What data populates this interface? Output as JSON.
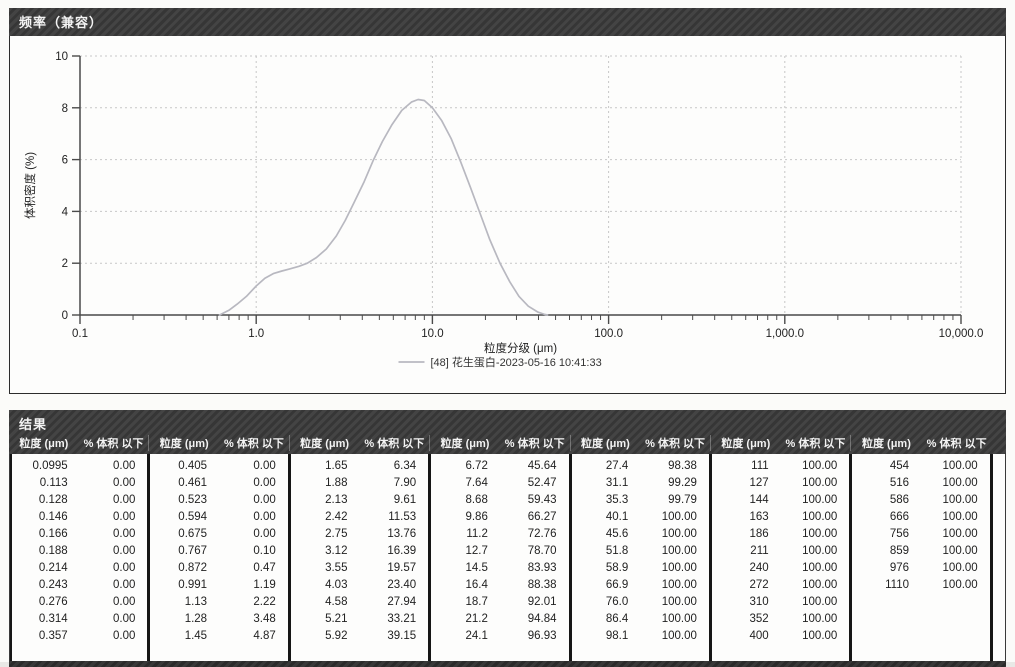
{
  "chart_panel": {
    "title": "频率（兼容）",
    "ylabel": "体积密度 (%)",
    "xlabel": "粒度分级 (μm)",
    "legend": "[48] 花生蛋白-2023-05-16 10:41:33",
    "y_ticks": [
      0,
      2,
      4,
      6,
      8,
      10
    ],
    "x_tick_values": [
      0.1,
      1,
      10,
      100,
      1000,
      10000
    ],
    "x_tick_labels": [
      "0.1",
      "1.0",
      "10.0",
      "100.0",
      "1,000.0",
      "10,000.0"
    ]
  },
  "chart_data": {
    "type": "line",
    "title": "频率（兼容）",
    "xlabel": "粒度分级 (μm)",
    "ylabel": "体积密度 (%)",
    "x_scale": "log",
    "xlim": [
      0.1,
      10000
    ],
    "ylim": [
      0,
      10
    ],
    "grid": true,
    "legend_position": "bottom",
    "series": [
      {
        "name": "[48] 花生蛋白-2023-05-16 10:41:33",
        "color": "#b8b8c0",
        "points": [
          [
            0.62,
            0
          ],
          [
            0.7,
            0.18
          ],
          [
            0.78,
            0.42
          ],
          [
            0.88,
            0.72
          ],
          [
            1.0,
            1.12
          ],
          [
            1.12,
            1.42
          ],
          [
            1.25,
            1.6
          ],
          [
            1.4,
            1.7
          ],
          [
            1.55,
            1.78
          ],
          [
            1.75,
            1.88
          ],
          [
            1.95,
            2.0
          ],
          [
            2.2,
            2.22
          ],
          [
            2.5,
            2.55
          ],
          [
            2.85,
            3.05
          ],
          [
            3.2,
            3.65
          ],
          [
            3.6,
            4.35
          ],
          [
            4.1,
            5.15
          ],
          [
            4.6,
            5.95
          ],
          [
            5.2,
            6.7
          ],
          [
            5.9,
            7.35
          ],
          [
            6.7,
            7.9
          ],
          [
            7.6,
            8.22
          ],
          [
            8.3,
            8.32
          ],
          [
            9.0,
            8.28
          ],
          [
            10.0,
            8.0
          ],
          [
            11.3,
            7.5
          ],
          [
            12.8,
            6.8
          ],
          [
            14.5,
            5.9
          ],
          [
            16.5,
            4.9
          ],
          [
            18.7,
            3.9
          ],
          [
            21.2,
            2.9
          ],
          [
            24.2,
            2.0
          ],
          [
            27.5,
            1.28
          ],
          [
            31,
            0.72
          ],
          [
            35,
            0.34
          ],
          [
            39.5,
            0.12
          ],
          [
            43.5,
            0.02
          ],
          [
            45,
            0
          ]
        ]
      }
    ]
  },
  "results_panel": {
    "title": "结果",
    "col_headers": [
      "粒度 (μm)",
      "% 体积 以下"
    ],
    "tables": [
      {
        "rows": [
          [
            "0.0995",
            "0.00"
          ],
          [
            "0.113",
            "0.00"
          ],
          [
            "0.128",
            "0.00"
          ],
          [
            "0.146",
            "0.00"
          ],
          [
            "0.166",
            "0.00"
          ],
          [
            "0.188",
            "0.00"
          ],
          [
            "0.214",
            "0.00"
          ],
          [
            "0.243",
            "0.00"
          ],
          [
            "0.276",
            "0.00"
          ],
          [
            "0.314",
            "0.00"
          ],
          [
            "0.357",
            "0.00"
          ]
        ]
      },
      {
        "rows": [
          [
            "0.405",
            "0.00"
          ],
          [
            "0.461",
            "0.00"
          ],
          [
            "0.523",
            "0.00"
          ],
          [
            "0.594",
            "0.00"
          ],
          [
            "0.675",
            "0.00"
          ],
          [
            "0.767",
            "0.10"
          ],
          [
            "0.872",
            "0.47"
          ],
          [
            "0.991",
            "1.19"
          ],
          [
            "1.13",
            "2.22"
          ],
          [
            "1.28",
            "3.48"
          ],
          [
            "1.45",
            "4.87"
          ]
        ]
      },
      {
        "rows": [
          [
            "1.65",
            "6.34"
          ],
          [
            "1.88",
            "7.90"
          ],
          [
            "2.13",
            "9.61"
          ],
          [
            "2.42",
            "11.53"
          ],
          [
            "2.75",
            "13.76"
          ],
          [
            "3.12",
            "16.39"
          ],
          [
            "3.55",
            "19.57"
          ],
          [
            "4.03",
            "23.40"
          ],
          [
            "4.58",
            "27.94"
          ],
          [
            "5.21",
            "33.21"
          ],
          [
            "5.92",
            "39.15"
          ]
        ]
      },
      {
        "rows": [
          [
            "6.72",
            "45.64"
          ],
          [
            "7.64",
            "52.47"
          ],
          [
            "8.68",
            "59.43"
          ],
          [
            "9.86",
            "66.27"
          ],
          [
            "11.2",
            "72.76"
          ],
          [
            "12.7",
            "78.70"
          ],
          [
            "14.5",
            "83.93"
          ],
          [
            "16.4",
            "88.38"
          ],
          [
            "18.7",
            "92.01"
          ],
          [
            "21.2",
            "94.84"
          ],
          [
            "24.1",
            "96.93"
          ]
        ]
      },
      {
        "rows": [
          [
            "27.4",
            "98.38"
          ],
          [
            "31.1",
            "99.29"
          ],
          [
            "35.3",
            "99.79"
          ],
          [
            "40.1",
            "100.00"
          ],
          [
            "45.6",
            "100.00"
          ],
          [
            "51.8",
            "100.00"
          ],
          [
            "58.9",
            "100.00"
          ],
          [
            "66.9",
            "100.00"
          ],
          [
            "76.0",
            "100.00"
          ],
          [
            "86.4",
            "100.00"
          ],
          [
            "98.1",
            "100.00"
          ]
        ]
      },
      {
        "rows": [
          [
            "111",
            "100.00"
          ],
          [
            "127",
            "100.00"
          ],
          [
            "144",
            "100.00"
          ],
          [
            "163",
            "100.00"
          ],
          [
            "186",
            "100.00"
          ],
          [
            "211",
            "100.00"
          ],
          [
            "240",
            "100.00"
          ],
          [
            "272",
            "100.00"
          ],
          [
            "310",
            "100.00"
          ],
          [
            "352",
            "100.00"
          ],
          [
            "400",
            "100.00"
          ]
        ]
      },
      {
        "rows": [
          [
            "454",
            "100.00"
          ],
          [
            "516",
            "100.00"
          ],
          [
            "586",
            "100.00"
          ],
          [
            "666",
            "100.00"
          ],
          [
            "756",
            "100.00"
          ],
          [
            "859",
            "100.00"
          ],
          [
            "976",
            "100.00"
          ],
          [
            "1110",
            "100.00"
          ]
        ]
      }
    ]
  },
  "colors": {
    "header_bar": "#3a3a3a",
    "curve": "#b8b8c0",
    "grid": "#c7c7c7",
    "axis": "#4a4a4a",
    "text": "#222222",
    "panel_bg": "#fdfdfc"
  }
}
